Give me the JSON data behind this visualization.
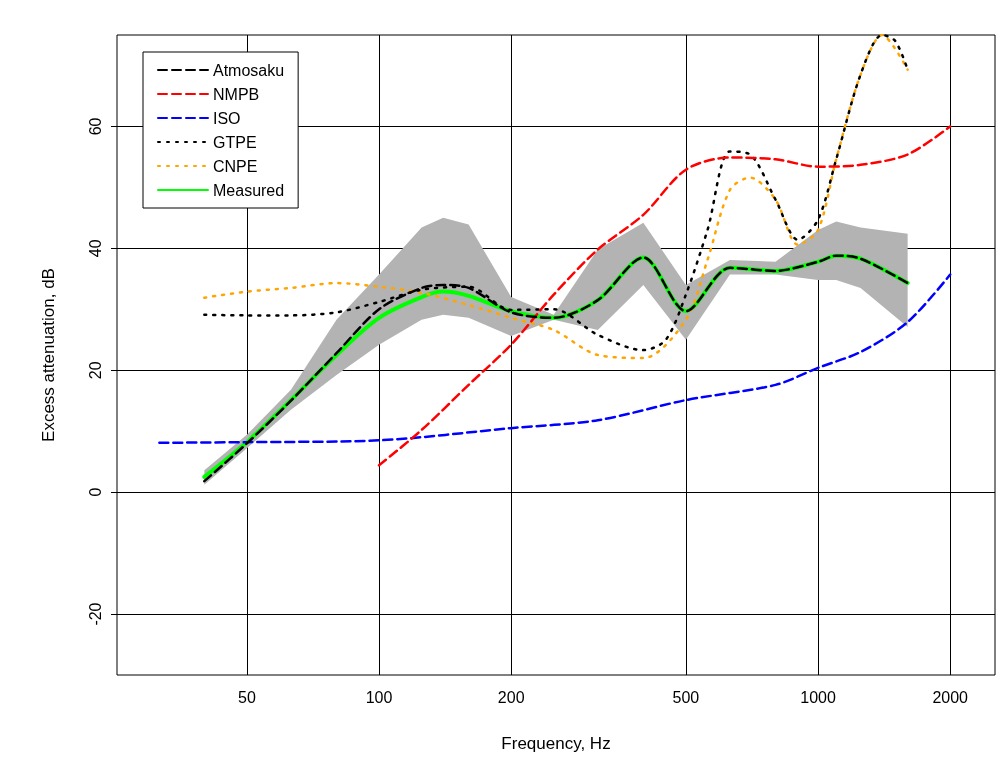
{
  "chart_data": {
    "type": "line",
    "xlabel": "Frequency, Hz",
    "ylabel": "Excess attenuation, dB",
    "log": "x",
    "xlim": [
      25.3,
      2530
    ],
    "ylim": [
      -30,
      75
    ],
    "xticks": [
      50,
      100,
      200,
      500,
      1000,
      2000
    ],
    "yticks": [
      -20,
      0,
      20,
      40,
      60
    ],
    "grid": true,
    "legend": "top left",
    "marker": "none",
    "series": [
      {
        "name": "Atmosaku",
        "color": "#000000",
        "line_style": "dashed",
        "x": [
          40,
          50,
          63,
          80,
          100,
          125,
          140,
          160,
          200,
          250,
          315,
          400,
          500,
          630,
          800,
          1000,
          1100,
          1250,
          1600
        ],
        "values": [
          1.8,
          8,
          15,
          22.8,
          30,
          33.5,
          34,
          33.5,
          29.5,
          28.6,
          31.5,
          38.5,
          29.7,
          36.8,
          36.3,
          37.8,
          38.8,
          38.3,
          34.3
        ]
      },
      {
        "name": "NMPB",
        "color": "#ff0000",
        "line_style": "dashed",
        "x": [
          100,
          125,
          160,
          200,
          250,
          315,
          400,
          500,
          630,
          800,
          1000,
          1250,
          1600,
          2000
        ],
        "values": [
          4.4,
          10.2,
          17.6,
          24.2,
          32.4,
          39.8,
          45.5,
          52.9,
          54.9,
          54.6,
          53.4,
          53.7,
          55.4,
          60
        ]
      },
      {
        "name": "ISO",
        "color": "#0000ff",
        "line_style": "dashed",
        "x": [
          31.6,
          50,
          100,
          200,
          315,
          500,
          800,
          1000,
          1250,
          1600,
          2000
        ],
        "values": [
          8.1,
          8.2,
          8.5,
          10.5,
          11.8,
          15.1,
          17.6,
          20.4,
          23,
          27.9,
          35.7
        ]
      },
      {
        "name": "GTPE",
        "color": "#000000",
        "line_style": "dotted",
        "x": [
          40,
          50,
          63,
          80,
          100,
          125,
          160,
          200,
          250,
          315,
          400,
          450,
          500,
          560,
          630,
          700,
          800,
          900,
          1000,
          1100,
          1250,
          1400,
          1500,
          1600
        ],
        "values": [
          29.1,
          29,
          29,
          29.5,
          31.2,
          33.2,
          33.7,
          29.9,
          30,
          25.8,
          23.3,
          25,
          32.4,
          43,
          55.9,
          55.4,
          48,
          41.4,
          44.7,
          54.6,
          68.5,
          75,
          74,
          69.3
        ]
      },
      {
        "name": "CNPE",
        "color": "#ffa500",
        "line_style": "dotted",
        "x": [
          40,
          50,
          63,
          80,
          100,
          125,
          160,
          200,
          250,
          315,
          400,
          500,
          560,
          630,
          700,
          800,
          900,
          1000,
          1100,
          1250,
          1400,
          1600
        ],
        "values": [
          31.9,
          32.9,
          33.5,
          34.3,
          33.7,
          32.7,
          30.7,
          28.6,
          26.6,
          22.5,
          22,
          28.3,
          38.1,
          49.6,
          51.6,
          48,
          40.6,
          43,
          54.6,
          68.5,
          75,
          69.3
        ]
      },
      {
        "name": "Measured",
        "color": "#00ff00",
        "line_style": "solid",
        "x": [
          40,
          50,
          63,
          80,
          100,
          125,
          140,
          160,
          200,
          250,
          315,
          400,
          500,
          630,
          800,
          1000,
          1100,
          1250,
          1600
        ],
        "values": [
          2.5,
          8.2,
          15.1,
          22.5,
          28.6,
          32,
          32.9,
          32.2,
          29.7,
          28.6,
          31.5,
          38.5,
          29.7,
          36.8,
          36.3,
          37.8,
          38.8,
          38.3,
          34.3
        ],
        "lower": [
          1.2,
          7.2,
          13.5,
          19.2,
          24.2,
          28.3,
          29.1,
          28.6,
          25.6,
          28.3,
          26.6,
          34,
          25,
          35.7,
          35.7,
          34.8,
          34.8,
          33.5,
          27.1
        ],
        "upper": [
          3.6,
          9.4,
          16.8,
          28.3,
          35.7,
          43.4,
          45,
          43.9,
          32,
          29.1,
          39.8,
          44.2,
          34,
          38.1,
          37.8,
          43,
          44.4,
          43.4,
          42.4
        ]
      }
    ]
  }
}
